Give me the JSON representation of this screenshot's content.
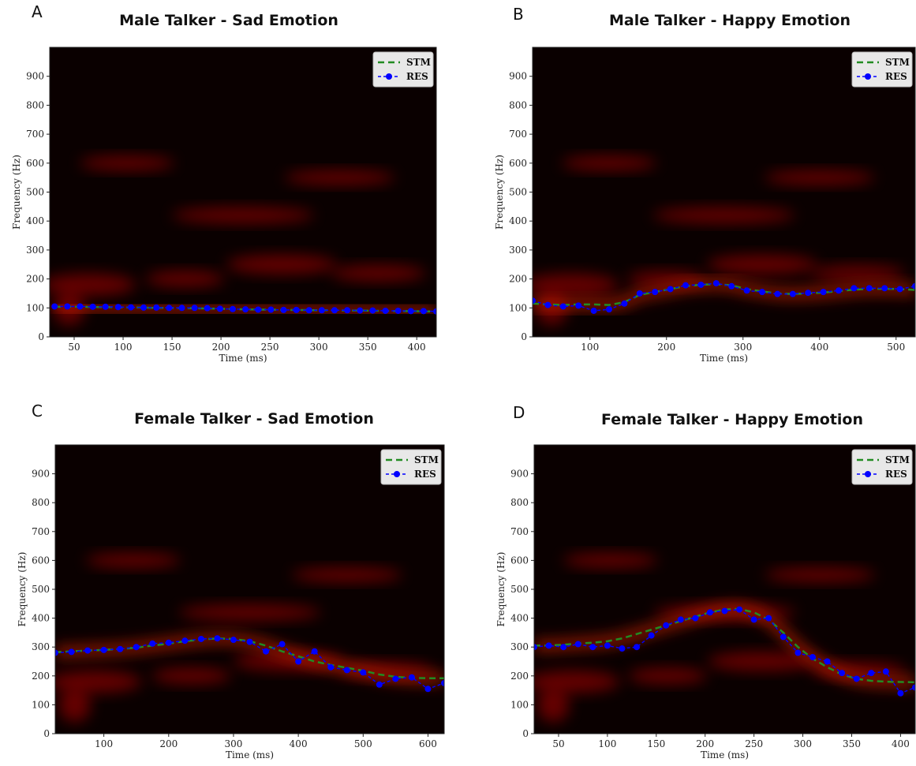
{
  "chart_data": [
    {
      "type": "line",
      "panel": "A",
      "title": "Male Talker - Sad Emotion",
      "xlabel": "Time (ms)",
      "ylabel": "Frequency (Hz)",
      "xlim": [
        25,
        420
      ],
      "ylim": [
        0,
        1000
      ],
      "xticks": [
        50,
        100,
        150,
        200,
        250,
        300,
        350,
        400
      ],
      "yticks": [
        0,
        100,
        200,
        300,
        400,
        500,
        600,
        700,
        800,
        900
      ],
      "legend": "upper right",
      "x": [
        30,
        43,
        56,
        69,
        82,
        95,
        108,
        121,
        134,
        147,
        160,
        173,
        186,
        199,
        212,
        225,
        238,
        251,
        264,
        277,
        290,
        303,
        316,
        329,
        342,
        355,
        368,
        381,
        394,
        407,
        420
      ],
      "series": [
        {
          "name": "STM",
          "color": "#228b22",
          "values": [
            104,
            104,
            104,
            103,
            103,
            102,
            102,
            101,
            100,
            100,
            99,
            99,
            98,
            97,
            96,
            95,
            94,
            94,
            93,
            93,
            92,
            92,
            92,
            91,
            91,
            90,
            90,
            89,
            89,
            88,
            88
          ]
        },
        {
          "name": "RES",
          "color": "#0000ff",
          "values": [
            105,
            105,
            105,
            104,
            104,
            103,
            102,
            101,
            101,
            100,
            100,
            100,
            99,
            97,
            96,
            95,
            94,
            94,
            93,
            93,
            92,
            92,
            92,
            92,
            91,
            91,
            90,
            90,
            89,
            89,
            88
          ]
        }
      ]
    },
    {
      "type": "line",
      "panel": "B",
      "title": "Male Talker - Happy Emotion",
      "xlabel": "Time (ms)",
      "ylabel": "Frequency (Hz)",
      "xlim": [
        25,
        525
      ],
      "ylim": [
        0,
        1000
      ],
      "xticks": [
        100,
        200,
        300,
        400,
        500
      ],
      "yticks": [
        0,
        100,
        200,
        300,
        400,
        500,
        600,
        700,
        800,
        900
      ],
      "legend": "upper right",
      "x": [
        25,
        45,
        65,
        85,
        105,
        125,
        145,
        165,
        185,
        205,
        225,
        245,
        265,
        285,
        305,
        325,
        345,
        365,
        385,
        405,
        425,
        445,
        465,
        485,
        505,
        525
      ],
      "series": [
        {
          "name": "STM",
          "color": "#228b22",
          "values": [
            115,
            112,
            110,
            112,
            112,
            110,
            120,
            145,
            155,
            165,
            175,
            180,
            182,
            178,
            165,
            157,
            150,
            148,
            150,
            153,
            158,
            163,
            166,
            166,
            165,
            162
          ]
        },
        {
          "name": "RES",
          "color": "#0000ff",
          "values": [
            125,
            110,
            105,
            108,
            90,
            95,
            115,
            150,
            155,
            165,
            178,
            180,
            185,
            175,
            160,
            155,
            148,
            148,
            152,
            155,
            160,
            168,
            168,
            168,
            165,
            175
          ]
        }
      ]
    },
    {
      "type": "line",
      "panel": "C",
      "title": "Female Talker - Sad Emotion",
      "xlabel": "Time (ms)",
      "ylabel": "Frequency (Hz)",
      "xlim": [
        25,
        625
      ],
      "ylim": [
        0,
        1000
      ],
      "xticks": [
        100,
        200,
        300,
        400,
        500,
        600
      ],
      "yticks": [
        0,
        100,
        200,
        300,
        400,
        500,
        600,
        700,
        800,
        900
      ],
      "legend": "upper right",
      "x": [
        25,
        50,
        75,
        100,
        125,
        150,
        175,
        200,
        225,
        250,
        275,
        300,
        325,
        350,
        375,
        400,
        425,
        450,
        475,
        500,
        525,
        550,
        575,
        600,
        625
      ],
      "series": [
        {
          "name": "STM",
          "color": "#228b22",
          "values": [
            282,
            285,
            288,
            290,
            293,
            298,
            305,
            312,
            320,
            326,
            330,
            328,
            320,
            305,
            285,
            268,
            250,
            238,
            228,
            218,
            205,
            197,
            193,
            192,
            192
          ]
        },
        {
          "name": "RES",
          "color": "#0000ff",
          "values": [
            280,
            283,
            288,
            290,
            293,
            300,
            312,
            315,
            322,
            328,
            330,
            325,
            318,
            285,
            310,
            250,
            285,
            230,
            220,
            212,
            170,
            190,
            195,
            155,
            175
          ]
        }
      ]
    },
    {
      "type": "line",
      "panel": "D",
      "title": "Female Talker - Happy Emotion",
      "xlabel": "Time (ms)",
      "ylabel": "Frequency (Hz)",
      "xlim": [
        25,
        415
      ],
      "ylim": [
        0,
        1000
      ],
      "xticks": [
        50,
        100,
        150,
        200,
        250,
        300,
        350,
        400
      ],
      "yticks": [
        0,
        100,
        200,
        300,
        400,
        500,
        600,
        700,
        800,
        900
      ],
      "legend": "upper right",
      "x": [
        25,
        40,
        55,
        70,
        85,
        100,
        115,
        130,
        145,
        160,
        175,
        190,
        205,
        220,
        235,
        250,
        265,
        280,
        295,
        310,
        325,
        340,
        355,
        370,
        385,
        400,
        415
      ],
      "series": [
        {
          "name": "STM",
          "color": "#228b22",
          "values": [
            305,
            305,
            308,
            312,
            315,
            320,
            330,
            345,
            360,
            375,
            390,
            405,
            420,
            430,
            432,
            420,
            395,
            350,
            300,
            260,
            230,
            205,
            190,
            183,
            180,
            179,
            178
          ]
        },
        {
          "name": "RES",
          "color": "#0000ff",
          "values": [
            300,
            305,
            300,
            310,
            300,
            305,
            295,
            300,
            340,
            375,
            395,
            400,
            420,
            425,
            430,
            395,
            400,
            335,
            280,
            265,
            250,
            210,
            190,
            210,
            215,
            140,
            160
          ]
        }
      ]
    }
  ]
}
